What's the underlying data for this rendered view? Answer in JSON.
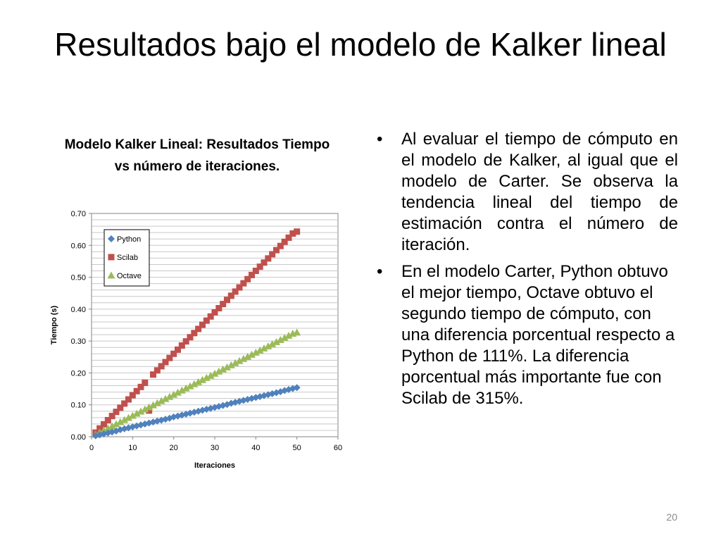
{
  "slide": {
    "title": "Resultados bajo el modelo de Kalker lineal",
    "page_number": "20"
  },
  "bullets": [
    "Al evaluar el tiempo de cómputo en el modelo de Kalker, al igual que el modelo de Carter. Se observa la tendencia lineal del tiempo de estimación contra el número de iteración.",
    "En el modelo Carter, Python obtuvo el mejor tiempo, Octave obtuvo el segundo tiempo de cómputo, con una diferencia porcentual respecto a Python de 111%. La diferencia porcentual más importante fue con Scilab de 315%."
  ],
  "bullet_glyph": "•",
  "chart_data": {
    "type": "scatter",
    "title": "Modelo Kalker Lineal: Resultados Tiempo vs número de iteraciones.",
    "xlabel": "Iteraciones",
    "ylabel": "Tiempo (s)",
    "xlim": [
      0,
      60
    ],
    "ylim": [
      0,
      0.7
    ],
    "x_ticks": [
      "0",
      "10",
      "20",
      "30",
      "40",
      "50",
      "60"
    ],
    "y_ticks": [
      "0.00",
      "0.10",
      "0.20",
      "0.30",
      "0.40",
      "0.50",
      "0.60",
      "0.70"
    ],
    "grid": true,
    "legend_position": "top-left",
    "series": [
      {
        "name": "Python",
        "marker": "diamond",
        "color": "#4F81BD",
        "x": [
          1,
          2,
          3,
          4,
          5,
          6,
          7,
          8,
          9,
          10,
          11,
          12,
          13,
          14,
          15,
          16,
          17,
          18,
          19,
          20,
          21,
          22,
          23,
          24,
          25,
          26,
          27,
          28,
          29,
          30,
          31,
          32,
          33,
          34,
          35,
          36,
          37,
          38,
          39,
          40,
          41,
          42,
          43,
          44,
          45,
          46,
          47,
          48,
          49,
          50
        ],
        "y": [
          0.003,
          0.006,
          0.009,
          0.012,
          0.015,
          0.018,
          0.022,
          0.025,
          0.028,
          0.031,
          0.034,
          0.037,
          0.04,
          0.043,
          0.046,
          0.049,
          0.052,
          0.055,
          0.058,
          0.062,
          0.065,
          0.068,
          0.071,
          0.074,
          0.077,
          0.08,
          0.083,
          0.086,
          0.089,
          0.092,
          0.095,
          0.098,
          0.101,
          0.105,
          0.108,
          0.111,
          0.114,
          0.117,
          0.12,
          0.123,
          0.126,
          0.129,
          0.132,
          0.135,
          0.138,
          0.141,
          0.145,
          0.148,
          0.151,
          0.154
        ]
      },
      {
        "name": "Scilab",
        "marker": "square",
        "color": "#C0504D",
        "x": [
          1,
          2,
          3,
          4,
          5,
          6,
          7,
          8,
          9,
          10,
          11,
          12,
          13,
          14,
          15,
          16,
          17,
          18,
          19,
          20,
          21,
          22,
          23,
          24,
          25,
          26,
          27,
          28,
          29,
          30,
          31,
          32,
          33,
          34,
          35,
          36,
          37,
          38,
          39,
          40,
          41,
          42,
          43,
          44,
          45,
          46,
          47,
          48,
          49,
          50
        ],
        "y": [
          0.013,
          0.026,
          0.039,
          0.052,
          0.065,
          0.078,
          0.091,
          0.104,
          0.117,
          0.13,
          0.143,
          0.156,
          0.169,
          0.082,
          0.195,
          0.208,
          0.221,
          0.234,
          0.247,
          0.26,
          0.273,
          0.286,
          0.299,
          0.312,
          0.325,
          0.338,
          0.351,
          0.364,
          0.377,
          0.39,
          0.403,
          0.416,
          0.429,
          0.442,
          0.455,
          0.468,
          0.481,
          0.494,
          0.507,
          0.52,
          0.533,
          0.546,
          0.559,
          0.572,
          0.585,
          0.598,
          0.611,
          0.624,
          0.637,
          0.643
        ]
      },
      {
        "name": "Octave",
        "marker": "triangle",
        "color": "#9BBB59",
        "x": [
          1,
          2,
          3,
          4,
          5,
          6,
          7,
          8,
          9,
          10,
          11,
          12,
          13,
          14,
          15,
          16,
          17,
          18,
          19,
          20,
          21,
          22,
          23,
          24,
          25,
          26,
          27,
          28,
          29,
          30,
          31,
          32,
          33,
          34,
          35,
          36,
          37,
          38,
          39,
          40,
          41,
          42,
          43,
          44,
          45,
          46,
          47,
          48,
          49,
          50
        ],
        "y": [
          0.0066,
          0.0132,
          0.0198,
          0.0264,
          0.033,
          0.0396,
          0.0462,
          0.0528,
          0.0594,
          0.066,
          0.0726,
          0.0792,
          0.0858,
          0.0924,
          0.099,
          0.1056,
          0.1122,
          0.1188,
          0.1254,
          0.132,
          0.1386,
          0.1452,
          0.1518,
          0.1584,
          0.165,
          0.1716,
          0.1782,
          0.1848,
          0.1914,
          0.198,
          0.2046,
          0.2112,
          0.2178,
          0.2244,
          0.231,
          0.2376,
          0.2442,
          0.2508,
          0.2574,
          0.264,
          0.2706,
          0.2772,
          0.2838,
          0.2904,
          0.297,
          0.3036,
          0.3102,
          0.3168,
          0.3234,
          0.327
        ]
      }
    ]
  }
}
